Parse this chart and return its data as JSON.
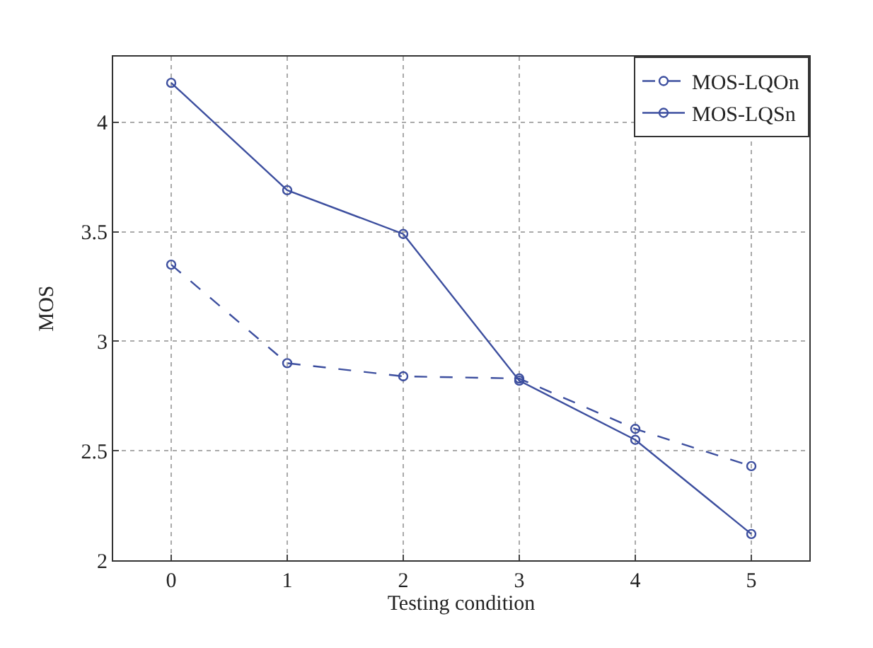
{
  "chart_data": {
    "type": "line",
    "xlabel": "Testing condition",
    "ylabel": "MOS",
    "x": [
      0,
      1,
      2,
      3,
      4,
      5
    ],
    "series": [
      {
        "name": "MOS-LQOn",
        "color": "#3d4f9f",
        "line_style": "dashed",
        "values": [
          3.35,
          2.9,
          2.84,
          2.83,
          2.6,
          2.43
        ]
      },
      {
        "name": "MOS-LQSn",
        "color": "#3d4f9f",
        "line_style": "solid",
        "values": [
          4.18,
          3.69,
          3.49,
          2.82,
          2.55,
          2.12
        ]
      }
    ],
    "xlim": [
      -0.5,
      5.5
    ],
    "xticks": [
      0,
      1,
      2,
      3,
      4,
      5
    ],
    "ylim": [
      2,
      4.3
    ],
    "yticks": [
      2,
      2.5,
      3,
      3.5,
      4
    ],
    "grid": true,
    "legend": "top right",
    "marker": "circle"
  }
}
